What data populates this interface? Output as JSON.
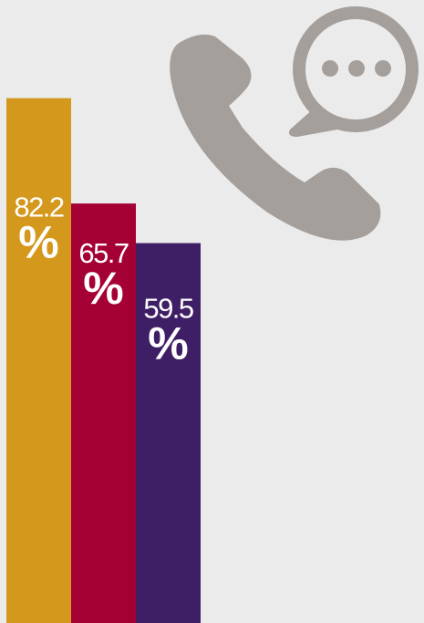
{
  "chart_data": {
    "type": "bar",
    "values": [
      82.2,
      65.7,
      59.5
    ],
    "colors": [
      "#d4981c",
      "#a50034",
      "#3e1f66"
    ],
    "unit": "%",
    "ylim": [
      0,
      100
    ]
  }
}
